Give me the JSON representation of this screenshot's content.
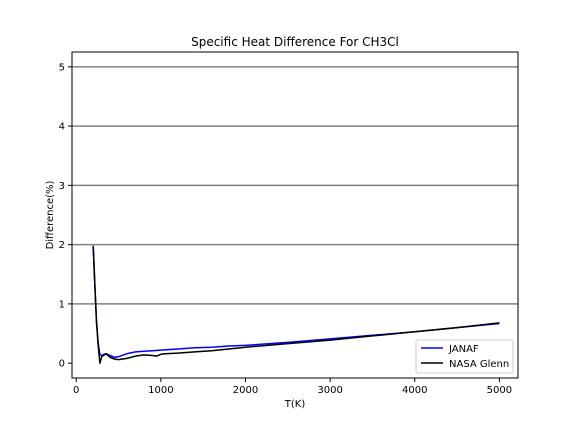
{
  "chart_data": {
    "type": "line",
    "title": "Specific Heat Difference For CH3Cl",
    "xlabel": "T(K)",
    "ylabel": "Difference(%)",
    "xlim": [
      -50,
      5220
    ],
    "ylim": [
      -0.25,
      5.25
    ],
    "xticks": [
      0,
      1000,
      2000,
      3000,
      4000,
      5000
    ],
    "yticks": [
      0,
      1,
      2,
      3,
      4,
      5
    ],
    "grid": {
      "horizontal_lines_at": [
        1,
        2,
        3,
        4,
        5
      ],
      "color": "#808080"
    },
    "legend_position": "lower-right",
    "series": [
      {
        "name": "JANAF",
        "color": "#0000ff",
        "x": [
          200,
          220,
          240,
          260,
          280,
          300,
          350,
          400,
          450,
          500,
          600,
          700,
          800,
          900,
          1000,
          1200,
          1400,
          1600,
          1800,
          2000,
          2500,
          3000,
          3500,
          4000,
          4500,
          5000
        ],
        "y": [
          1.98,
          1.3,
          0.7,
          0.33,
          0.15,
          0.13,
          0.16,
          0.13,
          0.1,
          0.11,
          0.16,
          0.19,
          0.2,
          0.21,
          0.22,
          0.24,
          0.26,
          0.27,
          0.29,
          0.3,
          0.35,
          0.41,
          0.47,
          0.53,
          0.6,
          0.67
        ]
      },
      {
        "name": "NASA Glenn",
        "color": "#000000",
        "x": [
          200,
          220,
          240,
          260,
          280,
          300,
          350,
          400,
          450,
          500,
          600,
          700,
          800,
          900,
          950,
          1000,
          1050,
          1200,
          1400,
          1600,
          1800,
          2000,
          2500,
          3000,
          3500,
          4000,
          4500,
          5000
        ],
        "y": [
          1.98,
          1.3,
          0.7,
          0.3,
          0.0,
          0.11,
          0.16,
          0.1,
          0.07,
          0.06,
          0.08,
          0.12,
          0.14,
          0.13,
          0.12,
          0.15,
          0.16,
          0.17,
          0.19,
          0.21,
          0.24,
          0.27,
          0.33,
          0.39,
          0.46,
          0.53,
          0.6,
          0.68
        ]
      }
    ]
  }
}
